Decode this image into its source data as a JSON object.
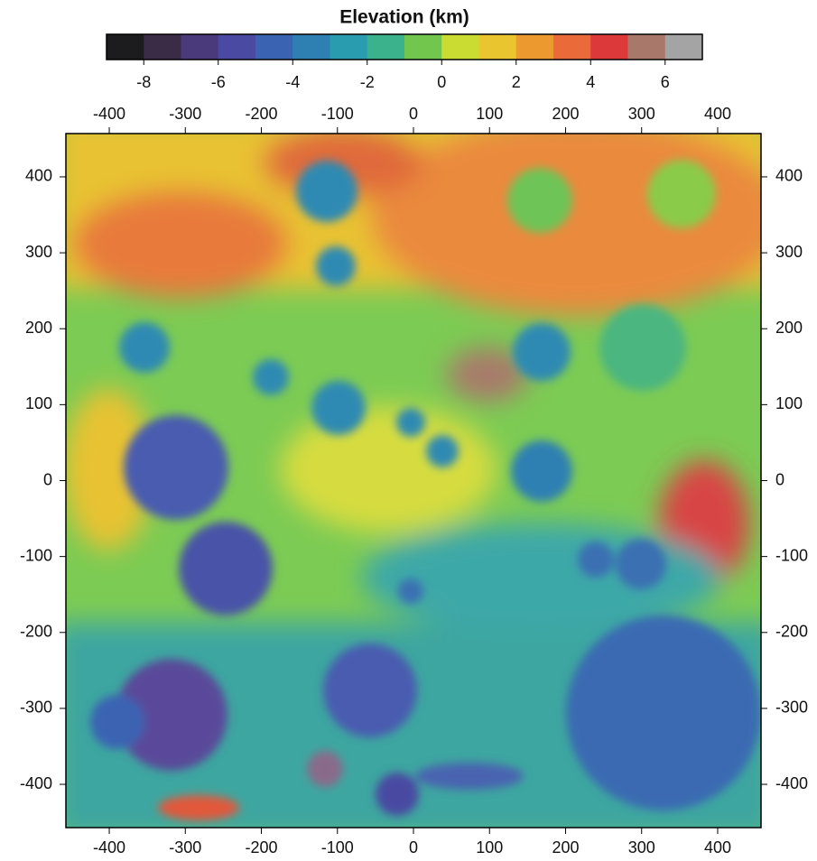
{
  "colorbar": {
    "title": "Elevation (km)",
    "lim": [
      -9,
      7
    ],
    "ticks": [
      -8,
      -6,
      -4,
      -2,
      0,
      2,
      4,
      6
    ],
    "colors": [
      "#1c1c1e",
      "#3a2c46",
      "#4a3a7c",
      "#4a4aa2",
      "#3a64b2",
      "#2f80b2",
      "#2a9cb0",
      "#3cb28c",
      "#72c64e",
      "#cadb32",
      "#e9c62f",
      "#ec9a30",
      "#ea6a3a",
      "#dc3a3a",
      "#a8786a",
      "#a4a4a4"
    ]
  },
  "map": {
    "xlim": [
      -457,
      457
    ],
    "ylim": [
      -457,
      457
    ],
    "xticks": [
      -400,
      -300,
      -200,
      -100,
      0,
      100,
      200,
      300,
      400
    ],
    "yticks": [
      -400,
      -300,
      -200,
      -100,
      0,
      100,
      200,
      300,
      400
    ]
  }
}
